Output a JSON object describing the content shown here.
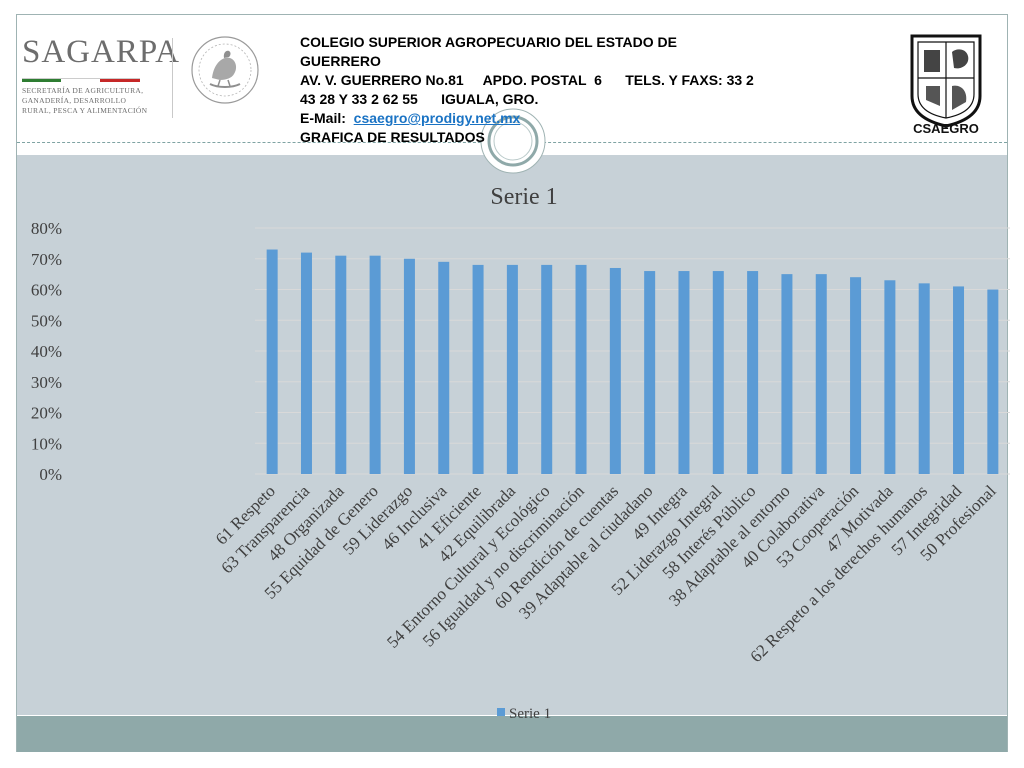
{
  "header": {
    "line1": "COLEGIO SUPERIOR AGROPECUARIO DEL ESTADO DE",
    "line2": "GUERRERO",
    "line3": "AV. V. GUERRERO No.81     APDO. POSTAL  6      TELS. Y FAXS: 33 2",
    "line4": "43 28 Y 33 2 62 55      IGUALA, GRO.",
    "email_label": "E-Mail:  ",
    "email": "csaegro@prodigy.net.mx",
    "line6": "GRAFICA DE RESULTADOS"
  },
  "logos": {
    "sagarpa_word": "SAGARPA",
    "sagarpa_sub": "SECRETARÍA DE AGRICULTURA, GANADERÍA, DESARROLLO RURAL, PESCA Y ALIMENTACIÓN",
    "csaegro_label": "CSAEGRO",
    "eagle_icon": "mexican-coat-of-arms-icon"
  },
  "colors": {
    "bar": "#5b9bd5",
    "band": "#c7d1d7",
    "footer": "#8fa9a9"
  },
  "chart_data": {
    "type": "bar",
    "title": "Serie 1",
    "xlabel": "",
    "ylabel": "",
    "ylim": [
      0,
      0.8
    ],
    "yticks": [
      "0%",
      "10%",
      "20%",
      "30%",
      "40%",
      "50%",
      "60%",
      "70%",
      "80%"
    ],
    "grid": true,
    "legend": "bottom",
    "categories": [
      "61 Respeto",
      "63 Transparencia",
      "48 Organizada",
      "55 Equidad de Genero",
      "59 Liderazgo",
      "46 Inclusiva",
      "41 Eficiente",
      "42 Equilibrada",
      "54 Entorno Cultural y Ecológico",
      "56 Igualdad y no discriminación",
      "60 Rendición de cuentas",
      "39 Adaptable al ciudadano",
      "49 Integra",
      "52 Liderazgo Integral",
      "58 Interés Público",
      "38 Adaptable al entorno",
      "40 Colaborativa",
      "53 Cooperación",
      "47 Motivada",
      "62 Respeto a los derechos humanos",
      "57 Integridad",
      "50 Profesional"
    ],
    "series": [
      {
        "name": "Serie 1",
        "values": [
          0.73,
          0.72,
          0.71,
          0.71,
          0.7,
          0.69,
          0.68,
          0.68,
          0.68,
          0.68,
          0.67,
          0.66,
          0.66,
          0.66,
          0.66,
          0.65,
          0.65,
          0.64,
          0.63,
          0.62,
          0.61,
          0.6
        ]
      }
    ]
  }
}
